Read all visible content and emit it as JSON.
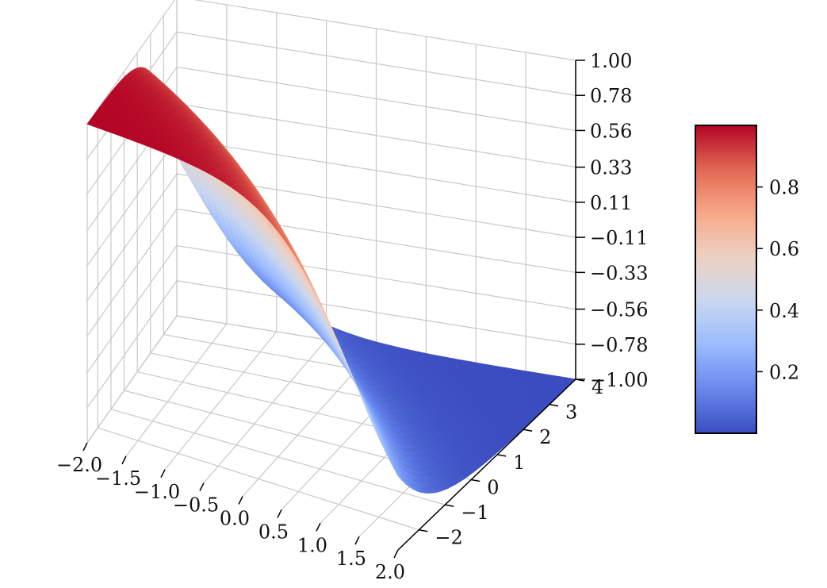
{
  "chart_data": {
    "type": "surface3d",
    "title": "",
    "xlabel": "",
    "ylabel": "",
    "zlabel": "",
    "surface_formula": "z = -tanh(x + 0.5*y)",
    "x_range": [
      -2.0,
      2.0
    ],
    "y_range": [
      -2.8,
      4.0
    ],
    "z_range": [
      -1.0,
      1.0
    ],
    "x_ticks": [
      "−2.0",
      "−1.5",
      "−1.0",
      "−0.5",
      "0.0",
      "0.5",
      "1.0",
      "1.5",
      "2.0"
    ],
    "x_tick_values": [
      -2.0,
      -1.5,
      -1.0,
      -0.5,
      0.0,
      0.5,
      1.0,
      1.5,
      2.0
    ],
    "y_ticks": [
      "−2",
      "−1",
      "0",
      "1",
      "2",
      "3",
      "4"
    ],
    "y_tick_values": [
      -2,
      -1,
      0,
      1,
      2,
      3,
      4
    ],
    "z_ticks": [
      "−1.00",
      "−0.78",
      "−0.56",
      "−0.33",
      "−0.11",
      "0.11",
      "0.33",
      "0.56",
      "0.78",
      "1.00"
    ],
    "z_tick_values": [
      -1.0,
      -0.78,
      -0.56,
      -0.33,
      -0.11,
      0.11,
      0.33,
      0.56,
      0.78,
      1.0
    ],
    "colormap": "coolwarm",
    "colormap_stops": [
      "#3b4cc0",
      "#6788ee",
      "#9abbff",
      "#c9d7f0",
      "#edd1c2",
      "#f7a889",
      "#e26952",
      "#b40426"
    ],
    "colorbar": {
      "range": [
        0.0,
        1.0
      ],
      "ticks": [
        "0.2",
        "0.4",
        "0.6",
        "0.8"
      ],
      "tick_values": [
        0.2,
        0.4,
        0.6,
        0.8
      ]
    },
    "grid": true,
    "pane_colors": {
      "grid": "#c8c8c8",
      "axis": "#000000"
    }
  }
}
